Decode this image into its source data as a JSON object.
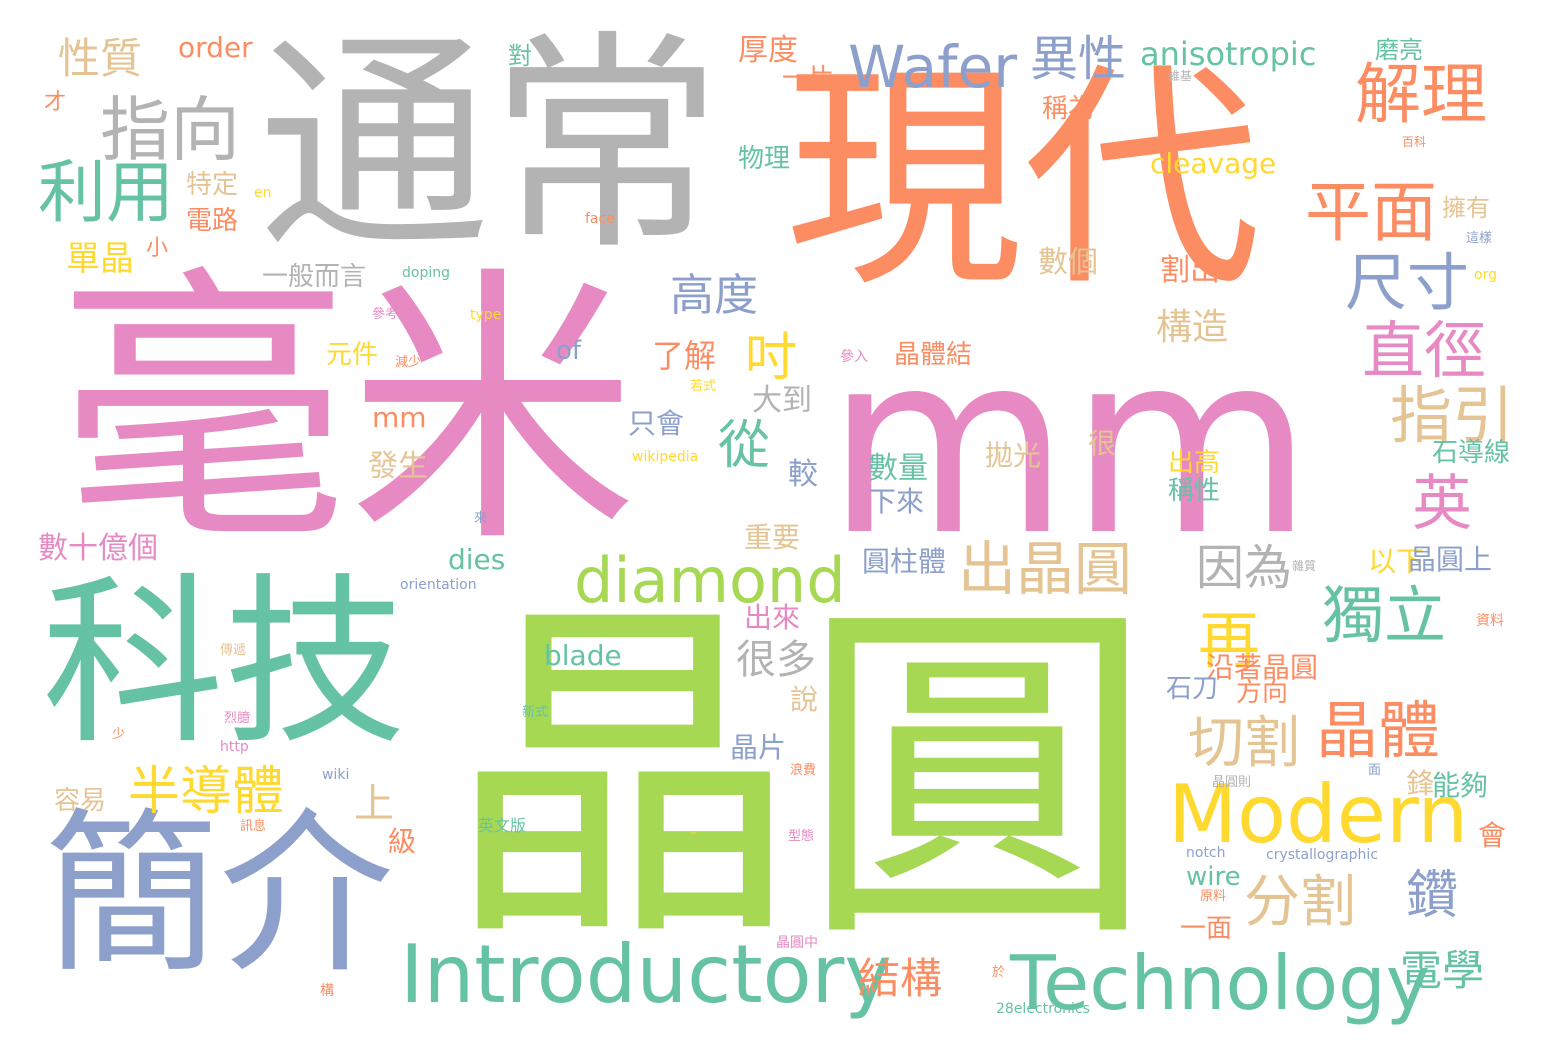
{
  "palette": {
    "teal": "#66c2a5",
    "orange": "#fc8d62",
    "blue": "#8da0cb",
    "pink": "#e78ac3",
    "green": "#a6d854",
    "yellow": "#ffd92f",
    "tan": "#e5c494",
    "gray": "#b3b3b3"
  },
  "words": [
    {
      "id": "w-haomi",
      "text": "毫米",
      "color": "pink"
    },
    {
      "id": "w-mm-big",
      "text": "mm",
      "color": "pink"
    },
    {
      "id": "w-jingyuan",
      "text": "晶圓",
      "color": "green"
    },
    {
      "id": "w-tongchang",
      "text": "通常",
      "color": "gray"
    },
    {
      "id": "w-xiandai",
      "text": "現代",
      "color": "orange"
    },
    {
      "id": "w-keji",
      "text": "科技",
      "color": "teal"
    },
    {
      "id": "w-jianjie",
      "text": "簡介",
      "color": "blue"
    },
    {
      "id": "w-introductory",
      "text": "Introductory",
      "color": "teal"
    },
    {
      "id": "w-technology",
      "text": "Technology",
      "color": "teal"
    },
    {
      "id": "w-modern",
      "text": "Modern",
      "color": "yellow"
    },
    {
      "id": "w-diamond",
      "text": "diamond",
      "color": "green"
    },
    {
      "id": "w-wafer",
      "text": "Wafer",
      "color": "blue"
    },
    {
      "id": "w-zhixiang",
      "text": "指向",
      "color": "gray"
    },
    {
      "id": "w-liyong",
      "text": "利用",
      "color": "teal"
    },
    {
      "id": "w-yixing",
      "text": "異性",
      "color": "blue"
    },
    {
      "id": "w-jieli",
      "text": "解理",
      "color": "orange"
    },
    {
      "id": "w-pingmian",
      "text": "平面",
      "color": "orange"
    },
    {
      "id": "w-chicun",
      "text": "尺寸",
      "color": "blue"
    },
    {
      "id": "w-zhijing",
      "text": "直徑",
      "color": "pink"
    },
    {
      "id": "w-zhiyin",
      "text": "指引",
      "color": "tan"
    },
    {
      "id": "w-ying",
      "text": "英",
      "color": "pink"
    },
    {
      "id": "w-chujingyuan",
      "text": "出晶圓",
      "color": "tan"
    },
    {
      "id": "w-yinwei",
      "text": "因為",
      "color": "gray"
    },
    {
      "id": "w-duli",
      "text": "獨立",
      "color": "teal"
    },
    {
      "id": "w-zai",
      "text": "再",
      "color": "yellow"
    },
    {
      "id": "w-jingti",
      "text": "晶體",
      "color": "orange"
    },
    {
      "id": "w-qiege",
      "text": "切割",
      "color": "tan"
    },
    {
      "id": "w-fenge",
      "text": "分割",
      "color": "tan"
    },
    {
      "id": "w-zuan",
      "text": "鑽",
      "color": "blue"
    },
    {
      "id": "w-dianxue",
      "text": "電學",
      "color": "teal"
    },
    {
      "id": "w-jiegou",
      "text": "結構",
      "color": "orange"
    },
    {
      "id": "w-bandaoti",
      "text": "半導體",
      "color": "yellow"
    },
    {
      "id": "w-cong",
      "text": "從",
      "color": "teal"
    },
    {
      "id": "w-cun",
      "text": "吋",
      "color": "yellow"
    },
    {
      "id": "w-gaodu",
      "text": "高度",
      "color": "blue"
    },
    {
      "id": "w-xingzhi",
      "text": "性質",
      "color": "tan"
    },
    {
      "id": "w-order",
      "text": "order",
      "color": "orange"
    },
    {
      "id": "w-anisotropic",
      "text": "anisotropic",
      "color": "teal"
    },
    {
      "id": "w-houdu",
      "text": "厚度",
      "color": "orange"
    },
    {
      "id": "w-mogong",
      "text": "磨亮",
      "color": "teal"
    },
    {
      "id": "w-dui",
      "text": "對",
      "color": "teal"
    },
    {
      "id": "w-yipian",
      "text": "一片",
      "color": "orange"
    },
    {
      "id": "w-weiji",
      "text": "維基",
      "color": "gray"
    },
    {
      "id": "w-chengwei",
      "text": "稱為",
      "color": "orange"
    },
    {
      "id": "w-cai",
      "text": "才",
      "color": "orange"
    },
    {
      "id": "w-baike",
      "text": "百科",
      "color": "orange"
    },
    {
      "id": "w-wuli",
      "text": "物理",
      "color": "teal"
    },
    {
      "id": "w-cleavage",
      "text": "cleavage",
      "color": "yellow"
    },
    {
      "id": "w-teding",
      "text": "特定",
      "color": "tan"
    },
    {
      "id": "w-en",
      "text": "en",
      "color": "yellow"
    },
    {
      "id": "w-dianlu",
      "text": "電路",
      "color": "orange"
    },
    {
      "id": "w-face",
      "text": "face",
      "color": "orange"
    },
    {
      "id": "w-yongyou",
      "text": "擁有",
      "color": "tan"
    },
    {
      "id": "w-zheyang",
      "text": "這樣",
      "color": "blue"
    },
    {
      "id": "w-danjing",
      "text": "單晶",
      "color": "yellow"
    },
    {
      "id": "w-xiao",
      "text": "小",
      "color": "orange"
    },
    {
      "id": "w-shuge",
      "text": "數個",
      "color": "tan"
    },
    {
      "id": "w-gechu",
      "text": "割出",
      "color": "orange"
    },
    {
      "id": "w-org",
      "text": "org",
      "color": "yellow"
    },
    {
      "id": "w-yibanersan",
      "text": "一般而言",
      "color": "gray"
    },
    {
      "id": "w-doping",
      "text": "doping",
      "color": "teal"
    },
    {
      "id": "w-cankao",
      "text": "參考",
      "color": "pink"
    },
    {
      "id": "w-type",
      "text": "type",
      "color": "yellow"
    },
    {
      "id": "w-gouzao",
      "text": "構造",
      "color": "tan"
    },
    {
      "id": "w-yuanjian",
      "text": "元件",
      "color": "yellow"
    },
    {
      "id": "w-of",
      "text": "of",
      "color": "blue"
    },
    {
      "id": "w-liaojie",
      "text": "了解",
      "color": "orange"
    },
    {
      "id": "w-canru",
      "text": "參入",
      "color": "pink"
    },
    {
      "id": "w-jingtijie",
      "text": "晶體結",
      "color": "orange"
    },
    {
      "id": "w-jianshao",
      "text": "減少",
      "color": "orange"
    },
    {
      "id": "w-ruoshi",
      "text": "若式",
      "color": "yellow"
    },
    {
      "id": "w-dadao",
      "text": "大到",
      "color": "gray"
    },
    {
      "id": "w-mm-small",
      "text": "mm",
      "color": "orange"
    },
    {
      "id": "w-zhihui",
      "text": "只會",
      "color": "blue"
    },
    {
      "id": "w-pao",
      "text": "拋光",
      "color": "tan"
    },
    {
      "id": "w-hen",
      "text": "很",
      "color": "tan"
    },
    {
      "id": "w-chugao",
      "text": "出高",
      "color": "yellow"
    },
    {
      "id": "w-shidaoxian",
      "text": "石導線",
      "color": "teal"
    },
    {
      "id": "w-fasheng",
      "text": "發生",
      "color": "tan"
    },
    {
      "id": "w-wikipedia",
      "text": "wikipedia",
      "color": "yellow"
    },
    {
      "id": "w-shuliang",
      "text": "數量",
      "color": "teal"
    },
    {
      "id": "w-jiao",
      "text": "較",
      "color": "blue"
    },
    {
      "id": "w-chengxing",
      "text": "稱性",
      "color": "teal"
    },
    {
      "id": "w-xialai",
      "text": "下來",
      "color": "blue"
    },
    {
      "id": "w-lai",
      "text": "來",
      "color": "blue"
    },
    {
      "id": "w-shushiyige",
      "text": "數十億個",
      "color": "pink"
    },
    {
      "id": "w-zhongyao",
      "text": "重要",
      "color": "tan"
    },
    {
      "id": "w-dies",
      "text": "dies",
      "color": "teal"
    },
    {
      "id": "w-yuanzhuti",
      "text": "圓柱體",
      "color": "blue"
    },
    {
      "id": "w-yixia",
      "text": "以下",
      "color": "yellow"
    },
    {
      "id": "w-jingyuanshang",
      "text": "晶圓上",
      "color": "blue"
    },
    {
      "id": "w-zazhi",
      "text": "雜質",
      "color": "gray"
    },
    {
      "id": "w-orientation",
      "text": "orientation",
      "color": "blue"
    },
    {
      "id": "w-chulai",
      "text": "出來",
      "color": "pink"
    },
    {
      "id": "w-henduo",
      "text": "很多",
      "color": "gray"
    },
    {
      "id": "w-ziliao",
      "text": "資料",
      "color": "orange"
    },
    {
      "id": "w-chuandi",
      "text": "傳遞",
      "color": "tan"
    },
    {
      "id": "w-blade",
      "text": "blade",
      "color": "teal"
    },
    {
      "id": "w-yanzhe",
      "text": "沿著晶圓",
      "color": "orange"
    },
    {
      "id": "w-shidao",
      "text": "石刀",
      "color": "blue"
    },
    {
      "id": "w-fangxiang",
      "text": "方向",
      "color": "orange"
    },
    {
      "id": "w-shuo",
      "text": "說",
      "color": "tan"
    },
    {
      "id": "w-lietiao",
      "text": "烈臆",
      "color": "pink"
    },
    {
      "id": "w-xinshi",
      "text": "新式",
      "color": "teal"
    },
    {
      "id": "w-shao",
      "text": "少",
      "color": "orange"
    },
    {
      "id": "w-http",
      "text": "http",
      "color": "pink"
    },
    {
      "id": "w-jingpian",
      "text": "晶片",
      "color": "blue"
    },
    {
      "id": "w-wiki",
      "text": "wiki",
      "color": "blue"
    },
    {
      "id": "w-langfei",
      "text": "浪費",
      "color": "orange"
    },
    {
      "id": "w-jingyuanze",
      "text": "晶圓則",
      "color": "gray"
    },
    {
      "id": "w-mian",
      "text": "面",
      "color": "blue"
    },
    {
      "id": "w-feng",
      "text": "鋒",
      "color": "tan"
    },
    {
      "id": "w-nenggou",
      "text": "能夠",
      "color": "teal"
    },
    {
      "id": "w-rongyi",
      "text": "容易",
      "color": "tan"
    },
    {
      "id": "w-shang",
      "text": "上",
      "color": "tan"
    },
    {
      "id": "w-xunxi",
      "text": "訊息",
      "color": "orange"
    },
    {
      "id": "w-yingwenban",
      "text": "英文版",
      "color": "teal"
    },
    {
      "id": "w-dash",
      "text": "–",
      "color": "yellow"
    },
    {
      "id": "w-ji",
      "text": "級",
      "color": "orange"
    },
    {
      "id": "w-xingtai",
      "text": "型態",
      "color": "pink"
    },
    {
      "id": "w-hui",
      "text": "會",
      "color": "orange"
    },
    {
      "id": "w-notch",
      "text": "notch",
      "color": "blue"
    },
    {
      "id": "w-crystallographic",
      "text": "crystallographic",
      "color": "blue"
    },
    {
      "id": "w-wire",
      "text": "wire",
      "color": "teal"
    },
    {
      "id": "w-yuanliao",
      "text": "原料",
      "color": "orange"
    },
    {
      "id": "w-yimian",
      "text": "一面",
      "color": "orange"
    },
    {
      "id": "w-jingyuanzhong",
      "text": "晶圓中",
      "color": "pink"
    },
    {
      "id": "w-yu",
      "text": "於",
      "color": "orange"
    },
    {
      "id": "w-gou",
      "text": "構",
      "color": "orange"
    },
    {
      "id": "w-28electronics",
      "text": "28electronics",
      "color": "teal"
    }
  ]
}
